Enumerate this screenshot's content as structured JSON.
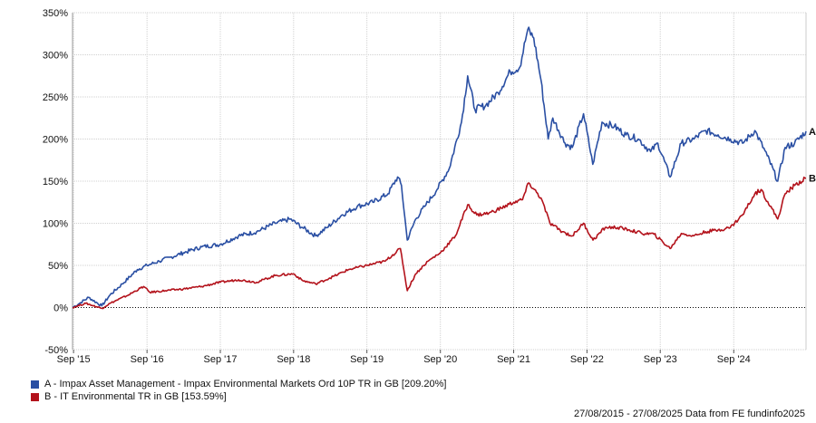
{
  "chart_data": {
    "type": "line",
    "x_range": [
      "2015-08-27",
      "2025-08-27"
    ],
    "ylim": [
      -50,
      350
    ],
    "y_ticks": [
      -50,
      0,
      50,
      100,
      150,
      200,
      250,
      300,
      350
    ],
    "y_tick_labels": [
      "-50%",
      "0%",
      "50%",
      "100%",
      "150%",
      "200%",
      "250%",
      "300%",
      "350%"
    ],
    "x_ticks": [
      "2015-09-01",
      "2016-09-01",
      "2017-09-01",
      "2018-09-01",
      "2019-09-01",
      "2020-09-01",
      "2021-09-01",
      "2022-09-01",
      "2023-09-01",
      "2024-09-01"
    ],
    "x_tick_labels": [
      "Sep '15",
      "Sep '16",
      "Sep '17",
      "Sep '18",
      "Sep '19",
      "Sep '20",
      "Sep '21",
      "Sep '22",
      "Sep '23",
      "Sep '24"
    ],
    "grid": true,
    "zero_line": "dotted",
    "legend_position": "bottom-left",
    "series": [
      {
        "name": "A - Impax Asset Management - Impax Environmental Markets Ord 10P TR in GB [209.20%]",
        "end_label": "A",
        "color": "#2a4fa3",
        "points": [
          [
            "2015-08-27",
            0
          ],
          [
            "2015-10-01",
            5
          ],
          [
            "2015-11-15",
            12
          ],
          [
            "2016-01-20",
            2
          ],
          [
            "2016-03-01",
            15
          ],
          [
            "2016-05-01",
            28
          ],
          [
            "2016-07-15",
            45
          ],
          [
            "2016-09-01",
            50
          ],
          [
            "2016-11-01",
            55
          ],
          [
            "2017-01-01",
            60
          ],
          [
            "2017-03-01",
            65
          ],
          [
            "2017-06-01",
            72
          ],
          [
            "2017-09-01",
            75
          ],
          [
            "2017-12-01",
            85
          ],
          [
            "2018-03-01",
            90
          ],
          [
            "2018-06-01",
            100
          ],
          [
            "2018-08-15",
            105
          ],
          [
            "2018-10-15",
            95
          ],
          [
            "2018-12-20",
            85
          ],
          [
            "2019-02-15",
            95
          ],
          [
            "2019-05-01",
            110
          ],
          [
            "2019-07-15",
            120
          ],
          [
            "2019-10-01",
            125
          ],
          [
            "2019-12-15",
            135
          ],
          [
            "2020-02-01",
            155
          ],
          [
            "2020-02-20",
            145
          ],
          [
            "2020-03-20",
            80
          ],
          [
            "2020-05-01",
            105
          ],
          [
            "2020-06-15",
            120
          ],
          [
            "2020-08-15",
            140
          ],
          [
            "2020-10-15",
            165
          ],
          [
            "2020-12-15",
            220
          ],
          [
            "2021-01-15",
            275
          ],
          [
            "2021-02-20",
            235
          ],
          [
            "2021-04-15",
            240
          ],
          [
            "2021-06-15",
            255
          ],
          [
            "2021-08-15",
            280
          ],
          [
            "2021-10-01",
            285
          ],
          [
            "2021-11-10",
            330
          ],
          [
            "2021-12-10",
            320
          ],
          [
            "2022-01-15",
            270
          ],
          [
            "2022-02-20",
            200
          ],
          [
            "2022-03-15",
            225
          ],
          [
            "2022-05-15",
            195
          ],
          [
            "2022-06-20",
            190
          ],
          [
            "2022-08-15",
            230
          ],
          [
            "2022-09-30",
            170
          ],
          [
            "2022-11-15",
            220
          ],
          [
            "2023-01-15",
            215
          ],
          [
            "2023-03-15",
            205
          ],
          [
            "2023-05-15",
            200
          ],
          [
            "2023-07-15",
            185
          ],
          [
            "2023-08-20",
            195
          ],
          [
            "2023-10-20",
            155
          ],
          [
            "2023-12-15",
            195
          ],
          [
            "2024-02-15",
            200
          ],
          [
            "2024-04-15",
            210
          ],
          [
            "2024-06-15",
            205
          ],
          [
            "2024-08-15",
            200
          ],
          [
            "2024-10-15",
            195
          ],
          [
            "2024-12-15",
            210
          ],
          [
            "2025-02-15",
            180
          ],
          [
            "2025-04-08",
            150
          ],
          [
            "2025-05-15",
            190
          ],
          [
            "2025-07-01",
            195
          ],
          [
            "2025-08-27",
            209.2
          ]
        ]
      },
      {
        "name": "B - IT Environmental TR in GB [153.59%]",
        "end_label": "B",
        "color": "#b3121b",
        "points": [
          [
            "2015-08-27",
            0
          ],
          [
            "2015-11-01",
            5
          ],
          [
            "2016-01-20",
            -1
          ],
          [
            "2016-03-01",
            5
          ],
          [
            "2016-06-01",
            15
          ],
          [
            "2016-08-15",
            25
          ],
          [
            "2016-09-15",
            18
          ],
          [
            "2016-12-01",
            20
          ],
          [
            "2017-03-01",
            22
          ],
          [
            "2017-06-01",
            25
          ],
          [
            "2017-09-01",
            30
          ],
          [
            "2017-12-01",
            33
          ],
          [
            "2018-03-01",
            30
          ],
          [
            "2018-06-01",
            38
          ],
          [
            "2018-09-01",
            40
          ],
          [
            "2018-10-15",
            32
          ],
          [
            "2018-12-20",
            28
          ],
          [
            "2019-03-01",
            35
          ],
          [
            "2019-06-01",
            45
          ],
          [
            "2019-09-01",
            50
          ],
          [
            "2019-12-01",
            55
          ],
          [
            "2020-02-15",
            70
          ],
          [
            "2020-03-20",
            20
          ],
          [
            "2020-05-01",
            40
          ],
          [
            "2020-07-01",
            55
          ],
          [
            "2020-09-01",
            65
          ],
          [
            "2020-11-15",
            85
          ],
          [
            "2021-01-15",
            122
          ],
          [
            "2021-03-01",
            110
          ],
          [
            "2021-05-01",
            112
          ],
          [
            "2021-07-01",
            118
          ],
          [
            "2021-09-01",
            125
          ],
          [
            "2021-10-15",
            128
          ],
          [
            "2021-11-15",
            148
          ],
          [
            "2022-01-15",
            130
          ],
          [
            "2022-03-01",
            100
          ],
          [
            "2022-05-01",
            90
          ],
          [
            "2022-06-20",
            85
          ],
          [
            "2022-08-15",
            100
          ],
          [
            "2022-10-01",
            80
          ],
          [
            "2022-12-01",
            95
          ],
          [
            "2023-02-01",
            95
          ],
          [
            "2023-04-01",
            92
          ],
          [
            "2023-06-01",
            88
          ],
          [
            "2023-08-01",
            87
          ],
          [
            "2023-10-20",
            70
          ],
          [
            "2023-12-15",
            88
          ],
          [
            "2024-02-15",
            85
          ],
          [
            "2024-04-15",
            90
          ],
          [
            "2024-06-15",
            92
          ],
          [
            "2024-08-15",
            95
          ],
          [
            "2024-10-15",
            110
          ],
          [
            "2024-12-15",
            135
          ],
          [
            "2025-01-15",
            140
          ],
          [
            "2025-04-08",
            105
          ],
          [
            "2025-05-15",
            135
          ],
          [
            "2025-07-01",
            145
          ],
          [
            "2025-08-27",
            153.59
          ]
        ]
      }
    ]
  },
  "footer": {
    "text": "27/08/2015 - 27/08/2025 Data from FE fundinfo2025"
  }
}
